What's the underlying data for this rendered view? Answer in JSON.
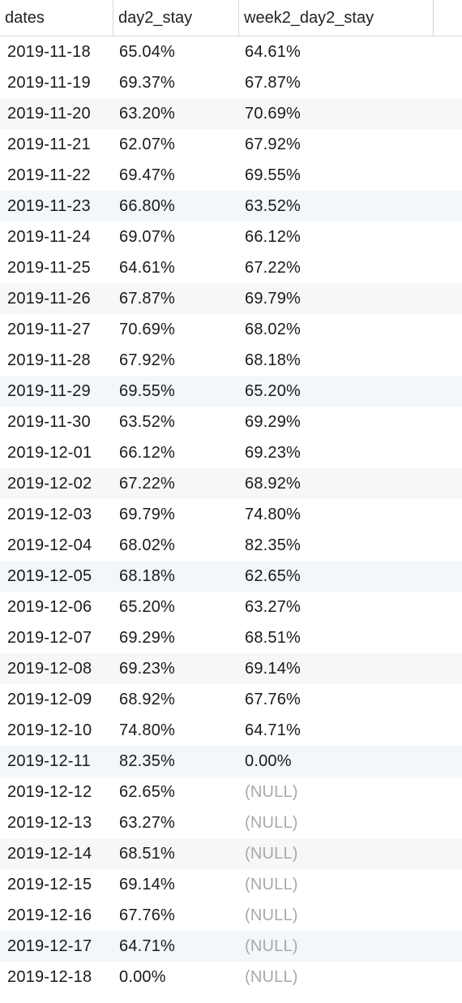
{
  "columns": [
    "dates",
    "day2_stay",
    "week2_day2_stay"
  ],
  "null_text": "(NULL)",
  "rows": [
    [
      "2019-11-18",
      "65.04%",
      "64.61%"
    ],
    [
      "2019-11-19",
      "69.37%",
      "67.87%"
    ],
    [
      "2019-11-20",
      "63.20%",
      "70.69%"
    ],
    [
      "2019-11-21",
      "62.07%",
      "67.92%"
    ],
    [
      "2019-11-22",
      "69.47%",
      "69.55%"
    ],
    [
      "2019-11-23",
      "66.80%",
      "63.52%"
    ],
    [
      "2019-11-24",
      "69.07%",
      "66.12%"
    ],
    [
      "2019-11-25",
      "64.61%",
      "67.22%"
    ],
    [
      "2019-11-26",
      "67.87%",
      "69.79%"
    ],
    [
      "2019-11-27",
      "70.69%",
      "68.02%"
    ],
    [
      "2019-11-28",
      "67.92%",
      "68.18%"
    ],
    [
      "2019-11-29",
      "69.55%",
      "65.20%"
    ],
    [
      "2019-11-30",
      "63.52%",
      "69.29%"
    ],
    [
      "2019-12-01",
      "66.12%",
      "69.23%"
    ],
    [
      "2019-12-02",
      "67.22%",
      "68.92%"
    ],
    [
      "2019-12-03",
      "69.79%",
      "74.80%"
    ],
    [
      "2019-12-04",
      "68.02%",
      "82.35%"
    ],
    [
      "2019-12-05",
      "68.18%",
      "62.65%"
    ],
    [
      "2019-12-06",
      "65.20%",
      "63.27%"
    ],
    [
      "2019-12-07",
      "69.29%",
      "68.51%"
    ],
    [
      "2019-12-08",
      "69.23%",
      "69.14%"
    ],
    [
      "2019-12-09",
      "68.92%",
      "67.76%"
    ],
    [
      "2019-12-10",
      "74.80%",
      "64.71%"
    ],
    [
      "2019-12-11",
      "82.35%",
      "0.00%"
    ],
    [
      "2019-12-12",
      "62.65%",
      "(NULL)"
    ],
    [
      "2019-12-13",
      "63.27%",
      "(NULL)"
    ],
    [
      "2019-12-14",
      "68.51%",
      "(NULL)"
    ],
    [
      "2019-12-15",
      "69.14%",
      "(NULL)"
    ],
    [
      "2019-12-16",
      "67.76%",
      "(NULL)"
    ],
    [
      "2019-12-17",
      "64.71%",
      "(NULL)"
    ],
    [
      "2019-12-18",
      "0.00%",
      "(NULL)"
    ]
  ],
  "colors": {
    "row_alt": "#f7f7f7",
    "row_highlight": "#f2f7fc",
    "null_text": "#a9a9a9",
    "grid_line": "#d8d8d8"
  }
}
